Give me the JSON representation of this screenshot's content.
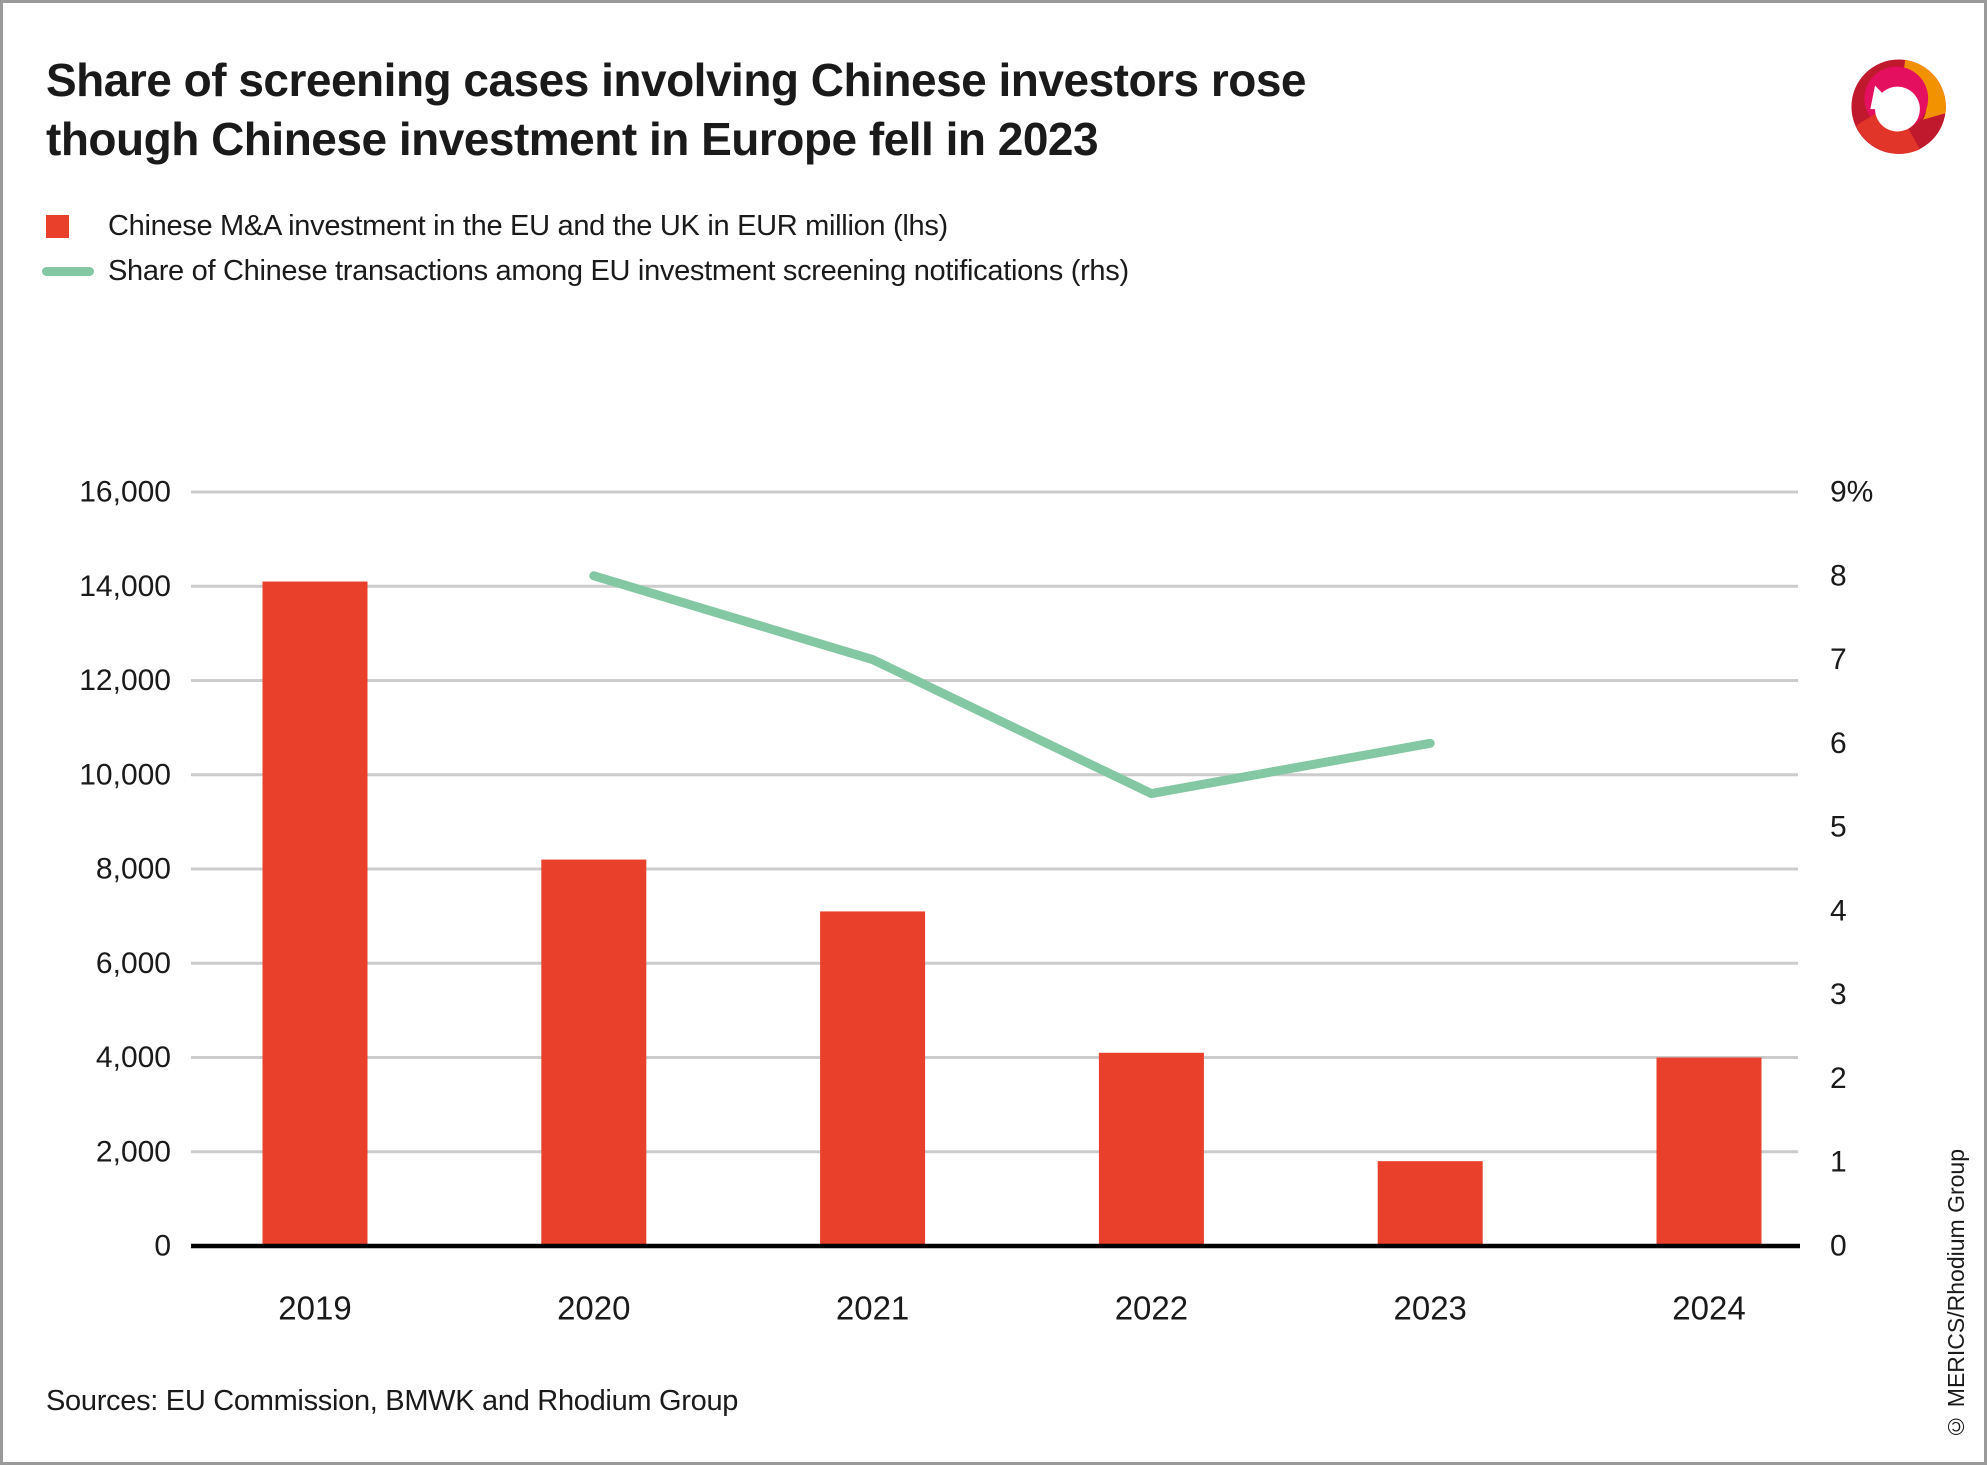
{
  "header": {
    "title": "Share of screening cases involving Chinese investors rose though Chinese investment in Europe fell in 2023"
  },
  "legend": {
    "items": [
      {
        "marker": "square",
        "color": "#e8402b",
        "label": "Chinese M&A investment in the EU and the UK in EUR million (lhs)"
      },
      {
        "marker": "line",
        "color": "#84c7a3",
        "label": "Share of Chinese transactions among EU investment screening notifications (rhs)"
      }
    ]
  },
  "chart_data": {
    "type": "combo_bar_line_dual_axis",
    "categories": [
      "2019",
      "2020",
      "2021",
      "2022",
      "2023",
      "2024"
    ],
    "series": [
      {
        "name": "Chinese M&A investment in the EU and the UK in EUR million",
        "type": "bar",
        "axis": "left",
        "color": "#e8402b",
        "values": [
          14100,
          8200,
          7100,
          4100,
          1800,
          4000
        ]
      },
      {
        "name": "Share of Chinese transactions among EU investment screening notifications",
        "type": "line",
        "axis": "right",
        "color": "#84c7a3",
        "values": [
          null,
          8.0,
          7.0,
          5.4,
          6.0,
          null
        ]
      }
    ],
    "left_axis": {
      "min": 0,
      "max": 16000,
      "step": 2000,
      "tick_labels": [
        "0",
        "2,000",
        "4,000",
        "6,000",
        "8,000",
        "10,000",
        "12,000",
        "14,000",
        "16,000"
      ]
    },
    "right_axis": {
      "min": 0,
      "max": 9,
      "step": 1,
      "tick_labels": [
        "0",
        "1",
        "2",
        "3",
        "4",
        "5",
        "6",
        "7",
        "8",
        "9%"
      ]
    },
    "grid": true,
    "gridline_color": "#cccccc",
    "axis_line_color": "#000000",
    "legend_position": "top-left"
  },
  "footer": {
    "sources": "Sources: EU Commission, BMWK and Rhodium Group",
    "copyright": "© MERICS/Rhodium Group"
  },
  "logo": {
    "name": "MERICS logo",
    "colors": {
      "dark_red": "#c0182c",
      "red": "#e1352a",
      "orange": "#f39200",
      "magenta": "#e50f5f"
    }
  }
}
